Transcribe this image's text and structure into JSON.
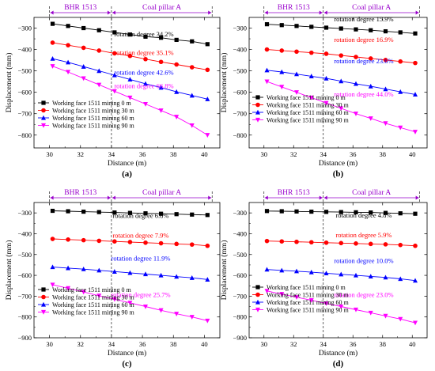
{
  "figure": {
    "legend_entries": [
      "Working face 1511 mining 0 m",
      "Working face 1511 mining 30 m",
      "Working face 1511 mining 60 m",
      "Working face 1511 mining 90 m"
    ],
    "series_colors": [
      "#000000",
      "#ff0000",
      "#0000ff",
      "#ff00ff"
    ],
    "series_markers": [
      "square",
      "circle",
      "triangle-up",
      "triangle-down"
    ],
    "zone_color": "#9900cc",
    "zone_labels": [
      "BHR 1513",
      "Coal pillar A"
    ]
  },
  "chart_data": [
    {
      "panel": "(a)",
      "type": "line",
      "xlabel": "Distance (m)",
      "ylabel": "Displacement (mm)",
      "xlim": [
        29,
        41
      ],
      "ylim": [
        -860,
        -250
      ],
      "xticks": [
        30,
        32,
        34,
        36,
        38,
        40
      ],
      "yticks": [
        -300,
        -400,
        -500,
        -600,
        -700,
        -800
      ],
      "zones": [
        {
          "label": "BHR 1513",
          "from": 30,
          "to": 34
        },
        {
          "label": "Coal pillar A",
          "from": 34,
          "to": 40.5
        }
      ],
      "x": [
        30.2,
        31.2,
        32.2,
        33.2,
        34.2,
        35.2,
        36.2,
        37.2,
        38.2,
        39.2,
        40.2
      ],
      "series": [
        {
          "name": "Working face 1511 mining 0 m",
          "values": [
            -280,
            -290,
            -300,
            -310,
            -320,
            -330,
            -340,
            -345,
            -355,
            -362,
            -375
          ]
        },
        {
          "name": "Working face 1511 mining 30 m",
          "values": [
            -368,
            -380,
            -392,
            -405,
            -418,
            -430,
            -445,
            -458,
            -470,
            -483,
            -495
          ]
        },
        {
          "name": "Working face 1511 mining 60 m",
          "values": [
            -443,
            -460,
            -480,
            -500,
            -520,
            -540,
            -560,
            -578,
            -598,
            -615,
            -632
          ]
        },
        {
          "name": "Working face 1511 mining 90 m",
          "values": [
            -478,
            -505,
            -535,
            -565,
            -595,
            -625,
            -655,
            -685,
            -715,
            -755,
            -800
          ]
        }
      ],
      "annotations": [
        "rotation degree 34.2%",
        "rotation degree 35.1%",
        "rotation degree 42.6%",
        "rotation degree 66.8%"
      ],
      "annotation_y": [
        -338,
        -425,
        -518,
        -580
      ]
    },
    {
      "panel": "(b)",
      "type": "line",
      "xlabel": "Distance (m)",
      "ylabel": "Displacement (mm)",
      "xlim": [
        29,
        41
      ],
      "ylim": [
        -860,
        -250
      ],
      "xticks": [
        30,
        32,
        34,
        36,
        38,
        40
      ],
      "yticks": [
        -300,
        -400,
        -500,
        -600,
        -700,
        -800
      ],
      "zones": [
        {
          "label": "BHR 1513",
          "from": 30,
          "to": 34
        },
        {
          "label": "Coal pillar A",
          "from": 34,
          "to": 40.5
        }
      ],
      "x": [
        30.2,
        31.2,
        32.2,
        33.2,
        34.2,
        35.2,
        36.2,
        37.2,
        38.2,
        39.2,
        40.2
      ],
      "series": [
        {
          "name": "Working face 1511 mining 0 m",
          "values": [
            -282,
            -286,
            -290,
            -294,
            -298,
            -302,
            -306,
            -310,
            -315,
            -320,
            -325
          ]
        },
        {
          "name": "Working face 1511 mining 30 m",
          "values": [
            -400,
            -405,
            -410,
            -415,
            -420,
            -428,
            -435,
            -442,
            -449,
            -456,
            -463
          ]
        },
        {
          "name": "Working face 1511 mining 60 m",
          "values": [
            -497,
            -505,
            -515,
            -525,
            -535,
            -548,
            -560,
            -572,
            -585,
            -598,
            -610
          ]
        },
        {
          "name": "Working face 1511 mining 90 m",
          "values": [
            -550,
            -575,
            -600,
            -625,
            -650,
            -675,
            -700,
            -722,
            -745,
            -765,
            -785
          ]
        }
      ],
      "annotations": [
        "rotation degree 15.9%",
        "rotation degree 16.9%",
        "rotation degree 23.6%",
        "rotation degree 44.0%"
      ],
      "annotation_y": [
        -268,
        -365,
        -465,
        -620
      ]
    },
    {
      "panel": "(c)",
      "type": "line",
      "xlabel": "Distance (m)",
      "ylabel": "Displacement (mm)",
      "xlim": [
        29,
        41
      ],
      "ylim": [
        -900,
        -250
      ],
      "xticks": [
        30,
        32,
        34,
        36,
        38,
        40
      ],
      "yticks": [
        -300,
        -400,
        -500,
        -600,
        -700,
        -800,
        -900
      ],
      "zones": [
        {
          "label": "BHR 1513",
          "from": 30,
          "to": 34
        },
        {
          "label": "Coal pillar A",
          "from": 34,
          "to": 40.5
        }
      ],
      "x": [
        30.2,
        31.2,
        32.2,
        33.2,
        34.2,
        35.2,
        36.2,
        37.2,
        38.2,
        39.2,
        40.2
      ],
      "series": [
        {
          "name": "Working face 1511 mining 0 m",
          "values": [
            -290,
            -292,
            -294,
            -296,
            -298,
            -300,
            -302,
            -304,
            -306,
            -308,
            -310
          ]
        },
        {
          "name": "Working face 1511 mining 30 m",
          "values": [
            -425,
            -428,
            -431,
            -434,
            -437,
            -440,
            -443,
            -446,
            -449,
            -452,
            -458
          ]
        },
        {
          "name": "Working face 1511 mining 60 m",
          "values": [
            -560,
            -565,
            -570,
            -576,
            -582,
            -588,
            -594,
            -600,
            -606,
            -612,
            -620
          ]
        },
        {
          "name": "Working face 1511 mining 90 m",
          "values": [
            -645,
            -662,
            -680,
            -698,
            -715,
            -732,
            -750,
            -768,
            -785,
            -800,
            -818
          ]
        }
      ],
      "annotations": [
        "rotation degree 6.8%",
        "rotation degree 7.9%",
        "rotation degree 11.9%",
        "rotation degree 25.7%"
      ],
      "annotation_y": [
        -325,
        -420,
        -530,
        -705
      ]
    },
    {
      "panel": "(d)",
      "type": "line",
      "xlabel": "Distance (m)",
      "ylabel": "Displacement (mm)",
      "xlim": [
        29,
        41
      ],
      "ylim": [
        -900,
        -250
      ],
      "xticks": [
        30,
        32,
        34,
        36,
        38,
        40
      ],
      "yticks": [
        -300,
        -400,
        -500,
        -600,
        -700,
        -800,
        -900
      ],
      "zones": [
        {
          "label": "BHR 1513",
          "from": 30,
          "to": 34
        },
        {
          "label": "Coal pillar A",
          "from": 34,
          "to": 40.5
        }
      ],
      "x": [
        30.2,
        31.2,
        32.2,
        33.2,
        34.2,
        35.2,
        36.2,
        37.2,
        38.2,
        39.2,
        40.2
      ],
      "series": [
        {
          "name": "Working face 1511 mining 0 m",
          "values": [
            -291,
            -292,
            -293,
            -294,
            -295,
            -296,
            -297,
            -298,
            -300,
            -302,
            -304
          ]
        },
        {
          "name": "Working face 1511 mining 30 m",
          "values": [
            -435,
            -437,
            -439,
            -441,
            -443,
            -445,
            -447,
            -449,
            -451,
            -454,
            -458
          ]
        },
        {
          "name": "Working face 1511 mining 60 m",
          "values": [
            -572,
            -576,
            -580,
            -585,
            -590,
            -595,
            -600,
            -605,
            -610,
            -617,
            -625
          ]
        },
        {
          "name": "Working face 1511 mining 90 m",
          "values": [
            -675,
            -690,
            -705,
            -720,
            -735,
            -750,
            -765,
            -780,
            -795,
            -810,
            -828
          ]
        }
      ],
      "annotations": [
        "rotation degree 4.8%",
        "rotation degree 5.9%",
        "rotation degree 10.0%",
        "rotation degree 23.0%"
      ],
      "annotation_y": [
        -322,
        -418,
        -540,
        -705
      ]
    }
  ]
}
